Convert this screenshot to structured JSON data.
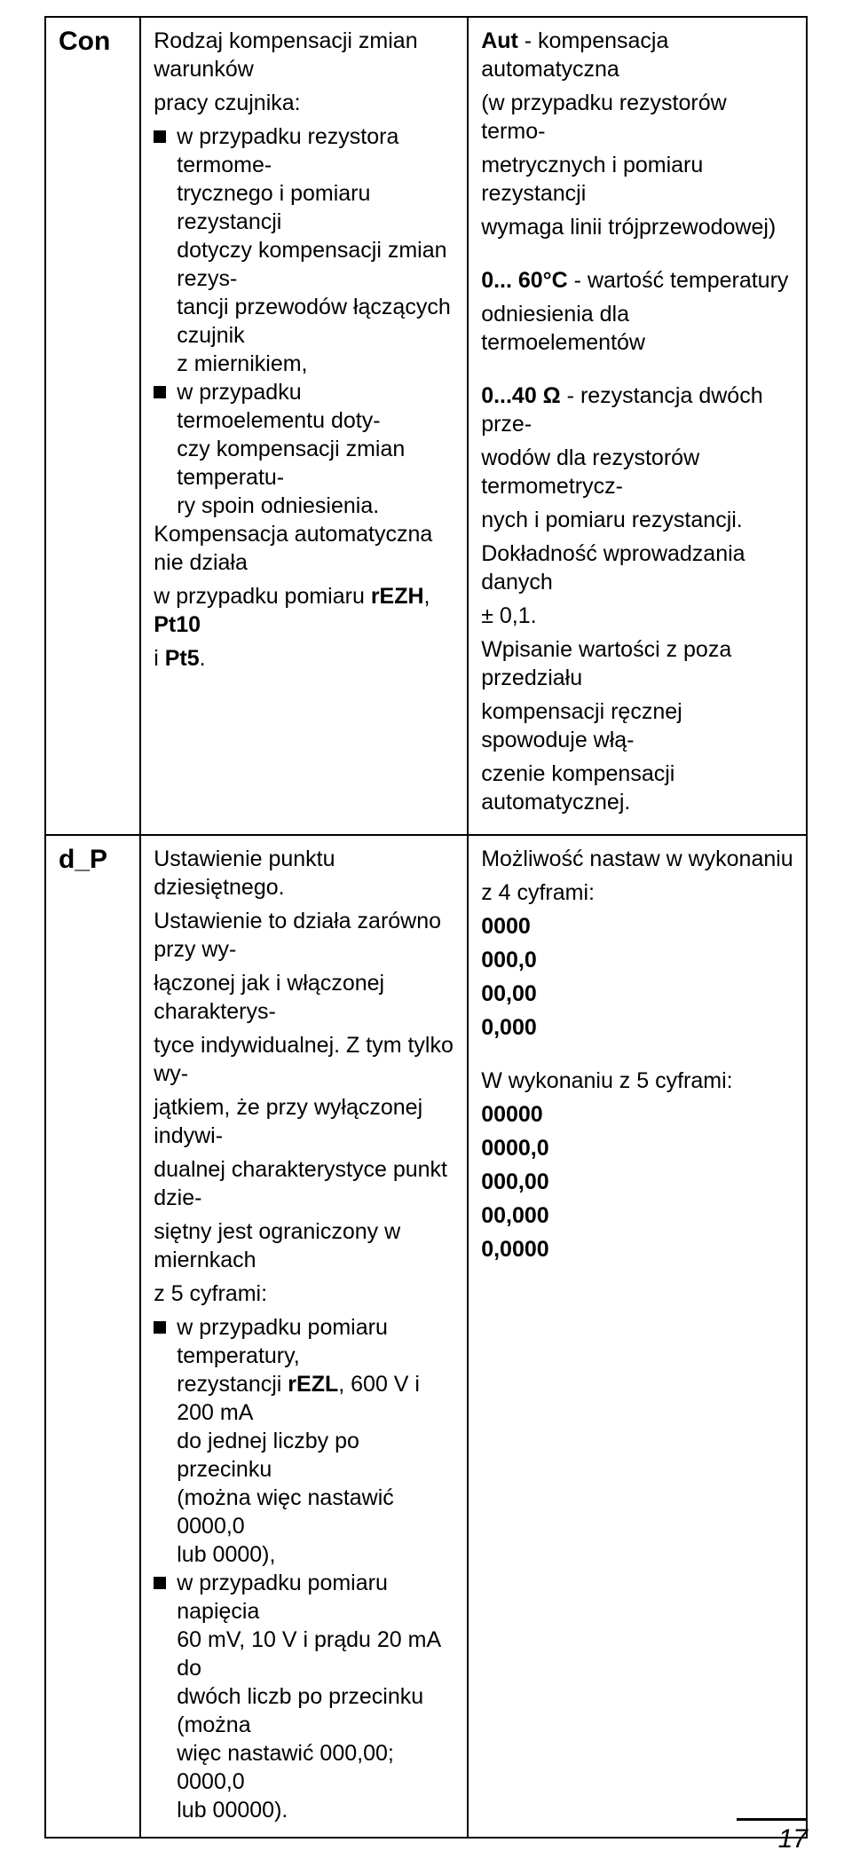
{
  "page_number": "17",
  "rows": {
    "con": {
      "label": "Con",
      "col1": {
        "intro1": "Rodzaj kompensacji zmian warunków",
        "intro2": "pracy czujnika:",
        "b1l1": "w przypadku rezystora termome-",
        "b1l2": "trycznego i pomiaru rezystancji",
        "b1l3": "dotyczy kompensacji zmian rezys-",
        "b1l4": "tancji przewodów łączących czujnik",
        "b1l5": "z miernikiem,",
        "b2l1": "w przypadku termoelementu doty-",
        "b2l2": "czy kompensacji zmian temperatu-",
        "b2l3": "ry spoin odniesienia.",
        "p2l1": "Kompensacja automatyczna nie działa",
        "p2l2a": "w przypadku pomiaru ",
        "p2l2b": "rEZH",
        "p2l2c": ", ",
        "p2l2d": "Pt10",
        "p2l3a": "i ",
        "p2l3b": "Pt5",
        "p2l3c": "."
      },
      "col2": {
        "p1l1a": "Aut",
        "p1l1b": " - kompensacja automatyczna",
        "p1l2": "(w przypadku rezystorów termo-",
        "p1l3": "metrycznych i pomiaru rezystancji",
        "p1l4": "wymaga linii trójprzewodowej)",
        "p2l1a": "0... 60°C",
        "p2l1b": " - wartość temperatury",
        "p2l2": "odniesienia dla termoelementów",
        "p3l1a": "0...40 Ω",
        "p3l1b": "  - rezystancja dwóch prze-",
        "p3l2": "wodów dla rezystorów termometrycz-",
        "p3l3": "nych i pomiaru rezystancji.",
        "p3l4": "Dokładność wprowadzania danych",
        "p3l5": "± 0,1.",
        "p3l6": "Wpisanie wartości z poza przedziału",
        "p3l7": "kompensacji ręcznej spowoduje włą-",
        "p3l8": "czenie kompensacji automatycznej."
      }
    },
    "dp": {
      "label": "d_P",
      "col1": {
        "p1l1": "Ustawienie punktu dziesiętnego.",
        "p1l2": "Ustawienie to działa zarówno przy wy-",
        "p1l3": "łączonej jak i włączonej charakterys-",
        "p1l4": "tyce indywidualnej. Z tym tylko wy-",
        "p1l5": "jątkiem, że przy wyłączonej indywi-",
        "p1l6": "dualnej charakterystyce punkt dzie-",
        "p1l7": "siętny jest ograniczony w miernkach",
        "p1l8": "z 5 cyframi:",
        "b1l1": "w przypadku pomiaru temperatury,",
        "b1l2a": "rezystancji ",
        "b1l2b": "rEZL",
        "b1l2c": ", 600 V i 200 mA",
        "b1l3": "do jednej liczby po przecinku",
        "b1l4": " (można więc nastawić 0000,0",
        "b1l5": "lub 0000),",
        "b2l1": "w przypadku pomiaru napięcia",
        "b2l2": "60 mV, 10 V i prądu 20 mA do",
        "b2l3": "dwóch liczb po przecinku (można",
        "b2l4": "więc nastawić 000,00; 0000,0",
        "b2l5": "lub 00000)."
      },
      "col2": {
        "p1l1": "Możliwość nastaw w wykonaniu",
        "p1l2": "z 4 cyframi:",
        "v4_1": "0000",
        "v4_2": "000,0",
        "v4_3": "00,00",
        "v4_4": "0,000",
        "p2l1": "W wykonaniu z 5 cyframi:",
        "v5_1": "00000",
        "v5_2": "0000,0",
        "v5_3": "000,00",
        "v5_4": "00,000",
        "v5_5": "0,0000"
      }
    }
  }
}
